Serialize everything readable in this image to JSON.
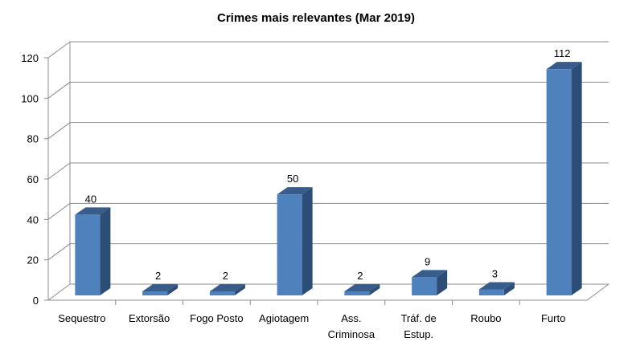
{
  "chart_data": {
    "type": "bar",
    "title": "Crimes mais relevantes (Mar 2019)",
    "categories": [
      [
        "Sequestro"
      ],
      [
        "Extorsão"
      ],
      [
        "Fogo Posto"
      ],
      [
        "Agiotagem"
      ],
      [
        "Ass.",
        "Criminosa"
      ],
      [
        "Tráf. de",
        "Estup."
      ],
      [
        "Roubo"
      ],
      [
        "Furto"
      ]
    ],
    "values": [
      40,
      2,
      2,
      50,
      2,
      9,
      3,
      112
    ],
    "data_labels": [
      "40",
      "2",
      "2",
      "50",
      "2",
      "9",
      "3",
      "112"
    ],
    "ylim": [
      0,
      120
    ],
    "yticks": [
      0,
      20,
      40,
      60,
      80,
      100,
      120
    ],
    "grid": true,
    "legend": "none",
    "colors": {
      "bar_front": "#4f81bd",
      "bar_side": "#2c4d75",
      "bar_top": "#385d8a",
      "grid": "#8c8c8c",
      "axis": "#8c8c8c",
      "text": "#000000"
    }
  }
}
